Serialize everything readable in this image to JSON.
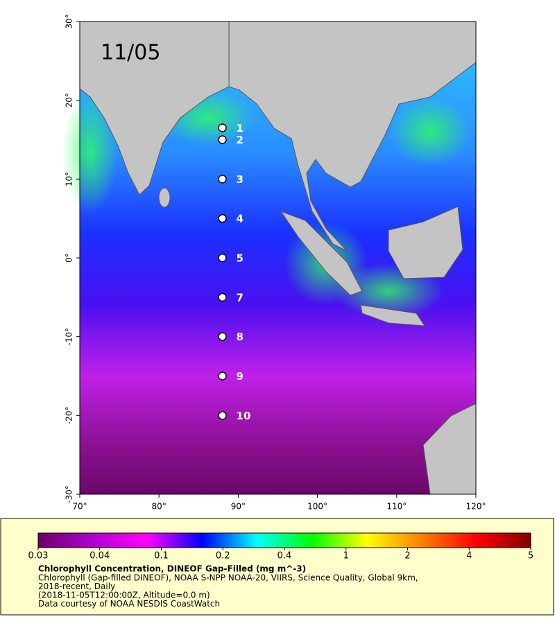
{
  "map": {
    "date_label": "11/05",
    "xlim": [
      70,
      120
    ],
    "ylim": [
      -30,
      30
    ],
    "xticks": [
      {
        "value": 70,
        "label": "70°"
      },
      {
        "value": 80,
        "label": "80°"
      },
      {
        "value": 90,
        "label": "90°"
      },
      {
        "value": 100,
        "label": "100°"
      },
      {
        "value": 110,
        "label": "110°"
      },
      {
        "value": 120,
        "label": "120°"
      }
    ],
    "yticks": [
      {
        "value": 30,
        "label": "30°"
      },
      {
        "value": 20,
        "label": "20°"
      },
      {
        "value": 10,
        "label": "10°"
      },
      {
        "value": 0,
        "label": "0°"
      },
      {
        "value": -10,
        "label": "-10°"
      },
      {
        "value": -20,
        "label": "-20°"
      },
      {
        "value": -30,
        "label": "-30°"
      }
    ],
    "stations": [
      {
        "label": "1",
        "lon": 88,
        "lat": 16.5
      },
      {
        "label": "2",
        "lon": 88,
        "lat": 15
      },
      {
        "label": "3",
        "lon": 88,
        "lat": 10
      },
      {
        "label": "4",
        "lon": 88,
        "lat": 5
      },
      {
        "label": "5",
        "lon": 88,
        "lat": 0
      },
      {
        "label": "7",
        "lon": 88,
        "lat": -5
      },
      {
        "label": "8",
        "lon": 88,
        "lat": -10
      },
      {
        "label": "9",
        "lon": 88,
        "lat": -15
      },
      {
        "label": "10",
        "lon": 88,
        "lat": -20
      }
    ]
  },
  "colorbar": {
    "ticks": [
      0.03,
      0.04,
      0.1,
      0.2,
      0.4,
      1,
      2,
      4,
      5
    ],
    "colors": [
      "#6a006a",
      "#b000d0",
      "#ff00ff",
      "#0000ff",
      "#00ffff",
      "#00ff00",
      "#ffff00",
      "#ff8000",
      "#ff0000",
      "#800000"
    ]
  },
  "legend": {
    "title": "Chlorophyll Concentration, DINEOF Gap-Filled (mg m^-3)",
    "lines": [
      "Chlorophyll (Gap-filled DINEOF), NOAA S-NPP NOAA-20, VIIRS, Science Quality, Global 9km,",
      "2018-recent,  Daily",
      "(2018-11-05T12:00:00Z, Altitude=0.0 m)",
      "Data courtesy of NOAA NESDIS CoastWatch"
    ]
  }
}
